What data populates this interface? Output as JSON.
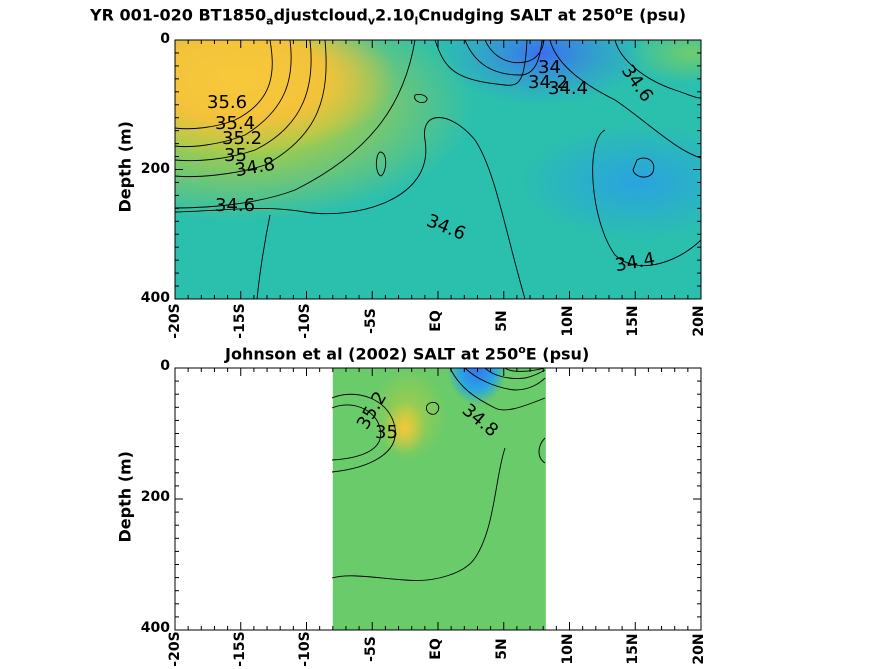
{
  "chart_data": [
    {
      "type": "heatmap",
      "title_parts": [
        "YR 001-020 BT1850",
        "a",
        "djustcloud",
        "v",
        "2.10",
        "l",
        "Cnudging SALT at 250",
        "o",
        "E (psu)"
      ],
      "ylabel": "Depth (m)",
      "xlim": [
        -20,
        20
      ],
      "ylim": [
        400,
        0
      ],
      "xticks": [
        -20,
        -15,
        -10,
        -5,
        0,
        5,
        10,
        15,
        20
      ],
      "xticklabels": [
        "-20S",
        "-15S",
        "-10S",
        "-5S",
        "EQ",
        "5N",
        "10N",
        "15N",
        "20N"
      ],
      "yticks": [
        0,
        200,
        400
      ],
      "yticklabels": [
        "0",
        "200",
        "400"
      ],
      "contour_labels": [
        "35.6",
        "35.4",
        "35.2",
        "35",
        "34.8",
        "34.6",
        "34.6",
        "34",
        "34.2",
        "34.4",
        "34.6",
        "34.4"
      ],
      "extent": [
        -20,
        20
      ]
    },
    {
      "type": "heatmap",
      "title_parts": [
        "Johnson et al (2002) SALT at 250",
        "o",
        "E (psu)"
      ],
      "ylabel": "Depth (m)",
      "xlim": [
        -20,
        20
      ],
      "ylim": [
        400,
        0
      ],
      "xticks": [
        -20,
        -15,
        -10,
        -5,
        0,
        5,
        10,
        15,
        20
      ],
      "xticklabels": [
        "-20S",
        "-15S",
        "-10S",
        "-5S",
        "EQ",
        "5N",
        "10N",
        "15N",
        "20N"
      ],
      "yticks": [
        0,
        200,
        400
      ],
      "yticklabels": [
        "0",
        "200",
        "400"
      ],
      "contour_labels": [
        "35.2",
        "35",
        "34.8"
      ],
      "extent": [
        -8,
        8.2
      ]
    }
  ]
}
